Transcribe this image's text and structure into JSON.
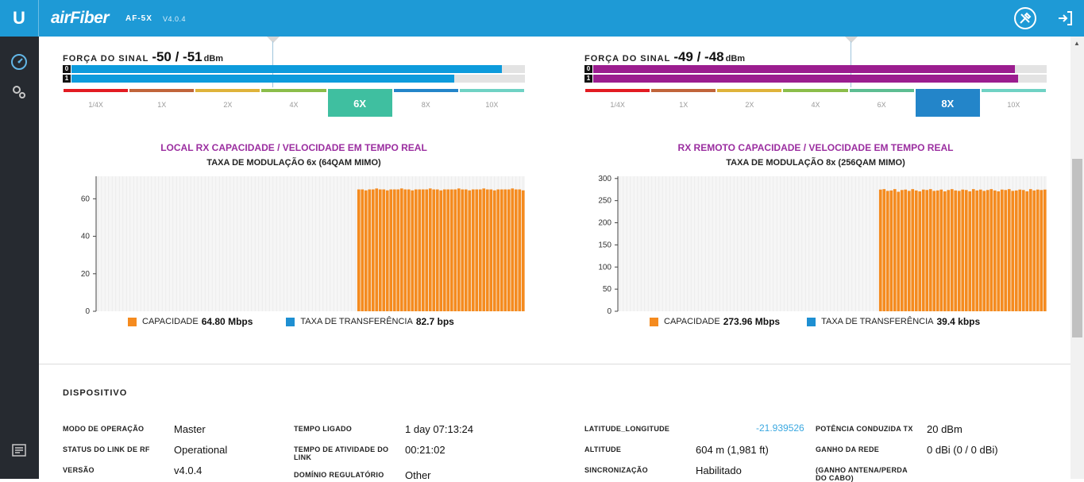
{
  "header": {
    "logo": "U",
    "brand": "airFiber",
    "model": "AF-5X",
    "version": "V4.0.4",
    "tools_icon": "tools-icon",
    "logout_icon": "logout-icon"
  },
  "sidebar": {
    "items": [
      {
        "icon": "dashboard-icon"
      },
      {
        "icon": "settings-gears-icon"
      },
      {
        "icon": "log-icon"
      }
    ]
  },
  "local": {
    "signal_label": "FORÇA DO SINAL",
    "signal_value": "-50 / -51",
    "signal_unit": "dBm",
    "chains": [
      {
        "label": "0",
        "level": 0.95
      },
      {
        "label": "1",
        "level": 0.845
      }
    ],
    "chain_color": "#0d9bdc",
    "scale": [
      "1/4X",
      "1X",
      "2X",
      "4X",
      "6X",
      "8X",
      "10X"
    ],
    "active_scale": "6X",
    "active_color": "#3fbfa0",
    "chart_title": "LOCAL RX  CAPACIDADE / VELOCIDADE EM TEMPO REAL",
    "chart_subtitle": "TAXA DE MODULAÇÃO 6x (64QAM MIMO)",
    "legend": {
      "capacity_label": "CAPACIDADE",
      "capacity_value": "64.80 Mbps",
      "throughput_label": "TAXA DE TRANSFERÊNCIA",
      "throughput_value": "82.7 bps"
    }
  },
  "remote": {
    "signal_label": "FORÇA DO SINAL",
    "signal_value": "-49 / -48",
    "signal_unit": "dBm",
    "chains": [
      {
        "label": "0",
        "level": 0.93
      },
      {
        "label": "1",
        "level": 0.937
      }
    ],
    "chain_color": "#9b1d8f",
    "scale": [
      "1/4X",
      "1X",
      "2X",
      "4X",
      "6X",
      "8X",
      "10X"
    ],
    "active_scale": "8X",
    "active_color": "#2385c9",
    "chart_title": "RX REMOTO  CAPACIDADE / VELOCIDADE EM TEMPO REAL",
    "chart_subtitle": "TAXA DE MODULAÇÃO 8x (256QAM MIMO)",
    "legend": {
      "capacity_label": "CAPACIDADE",
      "capacity_value": "273.96 Mbps",
      "throughput_label": "TAXA DE TRANSFERÊNCIA",
      "throughput_value": "39.4 kbps"
    }
  },
  "scale_colors": [
    "#e21b22",
    "#c1643a",
    "#dfb33a",
    "#8bbd4a",
    "#5dbd92",
    "#2385c9",
    "#6fd2c4"
  ],
  "capacity_color": "#f58b1f",
  "throughput_color": "#1e8fd2",
  "chart_data": [
    {
      "type": "bar",
      "title": "LOCAL RX  CAPACIDADE / VELOCIDADE EM TEMPO REAL",
      "ylim": [
        0,
        72
      ],
      "yticks": [
        0,
        20,
        40,
        60
      ],
      "total_slots": 120,
      "series": [
        {
          "name": "CAPACIDADE",
          "start_slot": 73,
          "values": [
            65,
            65,
            64.5,
            65,
            65,
            65.5,
            65,
            65,
            64.5,
            65,
            65,
            65,
            65.5,
            65,
            65,
            64.5,
            65,
            65,
            65,
            65,
            65.5,
            65,
            65,
            64.5,
            65,
            65,
            65,
            65,
            65.5,
            65,
            65,
            64.5,
            65,
            65,
            65,
            65.5,
            65,
            65,
            64.5,
            65,
            65,
            65,
            65,
            65.5,
            65,
            65,
            64.5
          ]
        },
        {
          "name": "TAXA DE TRANSFERÊNCIA",
          "values": []
        }
      ]
    },
    {
      "type": "bar",
      "title": "RX REMOTO  CAPACIDADE / VELOCIDADE EM TEMPO REAL",
      "ylim": [
        0,
        305
      ],
      "yticks": [
        0,
        50,
        100,
        150,
        200,
        250,
        300
      ],
      "total_slots": 120,
      "series": [
        {
          "name": "CAPACIDADE",
          "start_slot": 73,
          "values": [
            275,
            276,
            272,
            273,
            276,
            270,
            274,
            275,
            272,
            276,
            273,
            271,
            275,
            274,
            276,
            272,
            273,
            275,
            271,
            274,
            276,
            273,
            272,
            275,
            274,
            271,
            276,
            273,
            275,
            272,
            274,
            276,
            273,
            271,
            275,
            274,
            276,
            272,
            273,
            275,
            274,
            271,
            276,
            273,
            275,
            274,
            275
          ]
        },
        {
          "name": "TAXA DE TRANSFERÊNCIA",
          "values": []
        }
      ]
    }
  ],
  "device": {
    "title": "DISPOSITIVO",
    "col1": [
      {
        "key": "MODO DE OPERAÇÃO",
        "value": "Master"
      },
      {
        "key": "STATUS DO LINK DE RF",
        "value": "Operational"
      },
      {
        "key": "VERSÃO",
        "value": "v4.0.4"
      }
    ],
    "col2": [
      {
        "key": "TEMPO LIGADO",
        "value": "1 day 07:13:24"
      },
      {
        "key": "TEMPO DE ATIVIDADE DO LINK",
        "value": "00:21:02"
      },
      {
        "key": "DOMÍNIO REGULATÓRIO",
        "value": "Other"
      }
    ],
    "col3": [
      {
        "key": "LATITUDE_LONGITUDE",
        "value": "-21.939526"
      },
      {
        "key": "ALTITUDE",
        "value": "604 m (1,981 ft)"
      },
      {
        "key": "SINCRONIZAÇÃO",
        "value": "Habilitado"
      }
    ],
    "col4": [
      {
        "key": "POTÊNCIA CONDUZIDA TX",
        "value": "20 dBm"
      },
      {
        "key": "GANHO DA REDE",
        "value": "0 dBi (0 / 0 dBi)"
      },
      {
        "key": "(GANHO ANTENA/PERDA DO CABO)",
        "value": ""
      }
    ]
  }
}
